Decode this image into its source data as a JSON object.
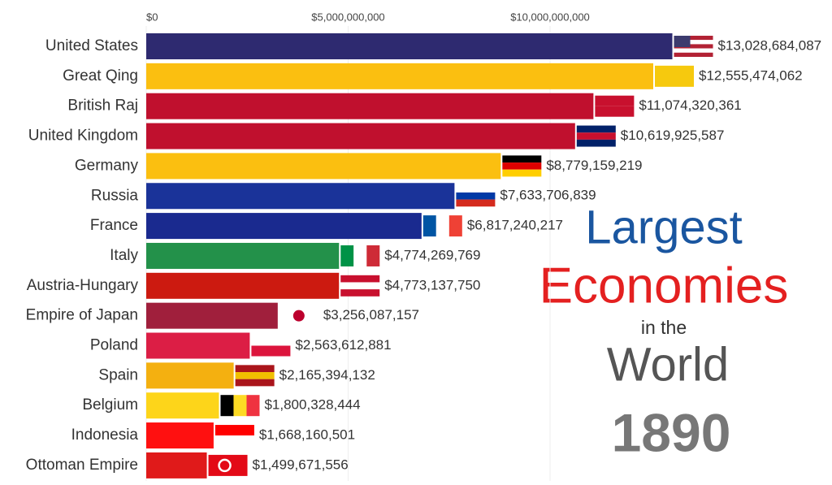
{
  "chart_data": {
    "type": "bar",
    "orientation": "horizontal",
    "annotations": [
      "Largest",
      "Economies",
      "in the",
      "World",
      "1890"
    ],
    "categories": [
      "United States",
      "Great Qing",
      "British Raj",
      "United Kingdom",
      "Germany",
      "Russia",
      "France",
      "Italy",
      "Austria-Hungary",
      "Empire of Japan",
      "Poland",
      "Spain",
      "Belgium",
      "Indonesia",
      "Ottoman Empire"
    ],
    "values": [
      13028684087,
      12555474062,
      11074320361,
      10619925587,
      8779159219,
      7633706839,
      6817240217,
      4774269769,
      4773137750,
      3256087157,
      2563612881,
      2165394132,
      1800328444,
      1668160501,
      1499671556
    ],
    "value_labels": [
      "$13,028,684,087",
      "$12,555,474,062",
      "$11,074,320,361",
      "$10,619,925,587",
      "$8,779,159,219",
      "$7,633,706,839",
      "$6,817,240,217",
      "$4,774,269,769",
      "$4,773,137,750",
      "$3,256,087,157",
      "$2,563,612,881",
      "$2,165,394,132",
      "$1,800,328,444",
      "$1,668,160,501",
      "$1,499,671,556"
    ],
    "colors": [
      "#2e2a70",
      "#fbbf10",
      "#c0102e",
      "#c0102e",
      "#fbbf10",
      "#1a3399",
      "#1a2a8f",
      "#23914a",
      "#cc1a10",
      "#a01f3c",
      "#dc1e45",
      "#f4b010",
      "#fdd51a",
      "#ff1010",
      "#e01a1a"
    ],
    "xlim": [
      0,
      16640000000
    ],
    "xticks": [
      {
        "value": 0,
        "label": "$0"
      },
      {
        "value": 5000000000,
        "label": "$5,000,000,000"
      },
      {
        "value": 10000000000,
        "label": "$10,000,000,000"
      }
    ]
  }
}
